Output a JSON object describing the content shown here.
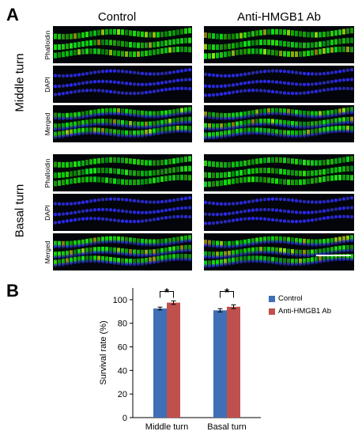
{
  "panel_a": {
    "letter": "A",
    "columns": [
      "Control",
      "Anti-HMGB1 Ab"
    ],
    "regions": [
      {
        "label": "Middle turn",
        "stains": [
          "Phalloidin",
          "DAPI",
          "Merged"
        ]
      },
      {
        "label": "Basal turn",
        "stains": [
          "Phalloidin",
          "DAPI",
          "Merged"
        ]
      }
    ]
  },
  "panel_b": {
    "letter": "B",
    "colors": {
      "control": "#3f6fb6",
      "antibody": "#c0504d",
      "axis": "#000000"
    },
    "significance": "*",
    "chart_data": {
      "type": "bar",
      "categories": [
        "Middle turn",
        "Basal turn"
      ],
      "series": [
        {
          "name": "Control",
          "values": [
            92.5,
            91
          ],
          "errors": [
            1.2,
            1.4
          ]
        },
        {
          "name": "Anti-HMGB1 Ab",
          "values": [
            97.5,
            94
          ],
          "errors": [
            1.5,
            1.6
          ]
        }
      ],
      "ylabel": "Survival rate (%)",
      "ylim": [
        0,
        110
      ],
      "yticks": [
        0,
        20,
        40,
        60,
        80,
        100
      ],
      "legend_position": "top-right",
      "grid": false
    }
  }
}
